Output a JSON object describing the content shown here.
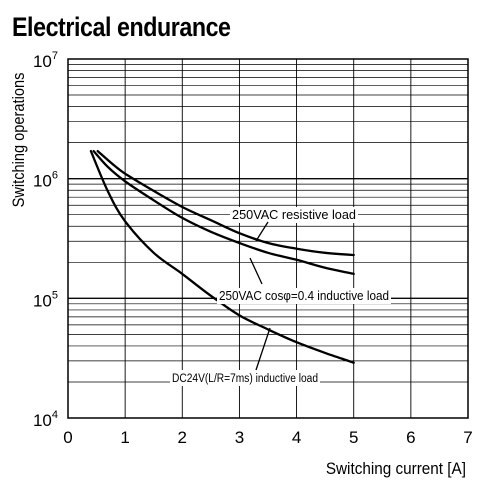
{
  "chart_data": {
    "type": "line",
    "title": "Electrical endurance",
    "xlabel": "Switching current [A]",
    "ylabel": "Switching operations",
    "x_scale": "linear",
    "y_scale": "log",
    "xlim": [
      0,
      7
    ],
    "ylim": [
      10000,
      10000000
    ],
    "grid": true,
    "x_ticks": [
      "0",
      "1",
      "2",
      "3",
      "4",
      "5",
      "6",
      "7"
    ],
    "y_ticks": [
      {
        "base": "10",
        "exp": "4"
      },
      {
        "base": "10",
        "exp": "5"
      },
      {
        "base": "10",
        "exp": "6"
      },
      {
        "base": "10",
        "exp": "7"
      }
    ],
    "series": [
      {
        "name": "250VAC resistive load",
        "x": [
          0.52,
          0.8,
          1.0,
          1.5,
          2.0,
          2.5,
          3.0,
          3.5,
          4.0,
          4.5,
          5.0
        ],
        "y": [
          1700000,
          1300000,
          1100000,
          790000,
          580000,
          450000,
          350000,
          290000,
          260000,
          240000,
          230000
        ]
      },
      {
        "name": "250VAC cosφ=0.4 inductive load",
        "x": [
          0.45,
          0.7,
          1.0,
          1.5,
          2.0,
          2.5,
          3.0,
          3.5,
          4.0,
          4.5,
          5.0
        ],
        "y": [
          1700000,
          1250000,
          950000,
          660000,
          470000,
          360000,
          290000,
          240000,
          210000,
          180000,
          160000
        ]
      },
      {
        "name": "DC24V(L/R=7ms) inductive load",
        "x": [
          0.4,
          0.7,
          1.0,
          1.5,
          2.0,
          2.5,
          3.0,
          3.5,
          4.0,
          4.5,
          5.0
        ],
        "y": [
          1700000,
          780000,
          440000,
          240000,
          160000,
          105000,
          72000,
          55000,
          43000,
          35000,
          29000
        ]
      }
    ],
    "annotations": [
      {
        "text": "250VAC resistive load",
        "series": 0
      },
      {
        "text": "250VAC cosφ=0.4 inductive load",
        "series": 1
      },
      {
        "text": "DC24V(L/R=7ms) inductive load",
        "series": 2
      }
    ]
  }
}
